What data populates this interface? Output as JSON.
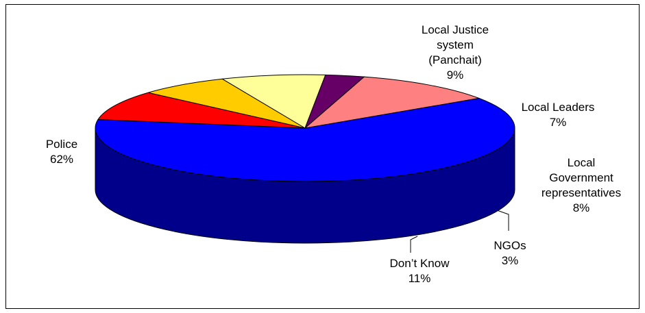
{
  "chart_data": {
    "type": "pie",
    "style": "3d-exploded-oval",
    "slices": [
      {
        "label": "Police",
        "label_lines": [
          "Police"
        ],
        "pct_text": "62%",
        "value": 62,
        "color": "#0000FF",
        "side_color": "#00008B"
      },
      {
        "label": "Local Justice system (Panchait)",
        "label_lines": [
          "Local Justice",
          "system",
          "(Panchait)"
        ],
        "pct_text": "9%",
        "value": 9,
        "color": "#FF0000",
        "side_color": "#8B0000"
      },
      {
        "label": "Local Leaders",
        "label_lines": [
          "Local Leaders"
        ],
        "pct_text": "7%",
        "value": 7,
        "color": "#FFCC00",
        "side_color": "#8B6F00"
      },
      {
        "label": "Local Government representatives",
        "label_lines": [
          "Local",
          "Government",
          "representatives"
        ],
        "pct_text": "8%",
        "value": 8,
        "color": "#FFFF99",
        "side_color": "#8A8A45"
      },
      {
        "label": "NGOs",
        "label_lines": [
          "NGOs"
        ],
        "pct_text": "3%",
        "value": 3,
        "color": "#660066",
        "side_color": "#330033"
      },
      {
        "label": "Don’t Know",
        "label_lines": [
          "Don’t Know"
        ],
        "pct_text": "11%",
        "value": 11,
        "color": "#FF8080",
        "side_color": "#7F4040"
      }
    ]
  }
}
